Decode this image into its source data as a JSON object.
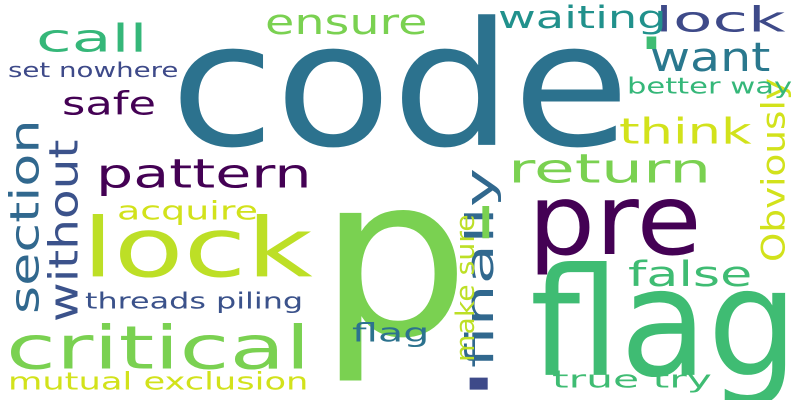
{
  "word_cloud": {
    "background_color": "#ffffff",
    "words": [
      {
        "text": "p",
        "color": "#7ad151",
        "orientation": "horizontal"
      },
      {
        "text": "code",
        "color": "#2c728e",
        "orientation": "horizontal"
      },
      {
        "text": "lock",
        "color": "#bddf26",
        "orientation": "horizontal"
      },
      {
        "text": "flag",
        "color": "#3fbc73",
        "orientation": "horizontal"
      },
      {
        "text": "pre",
        "color": "#440154",
        "orientation": "horizontal"
      },
      {
        "text": "critical",
        "color": "#7ad151",
        "orientation": "horizontal"
      },
      {
        "text": "section",
        "color": "#31688e",
        "orientation": "vertical"
      },
      {
        "text": "without",
        "color": "#3b528b",
        "orientation": "vertical"
      },
      {
        "text": "pattern",
        "color": "#440154",
        "orientation": "horizontal"
      },
      {
        "text": "return",
        "color": "#7ad151",
        "orientation": "horizontal"
      },
      {
        "text": "think",
        "color": "#d2e21b",
        "orientation": "horizontal"
      },
      {
        "text": "finally",
        "color": "#31688e",
        "orientation": "vertical"
      },
      {
        "text": "false",
        "color": "#3fbc73",
        "orientation": "horizontal"
      },
      {
        "text": "safe",
        "color": "#440154",
        "orientation": "horizontal"
      },
      {
        "text": "call",
        "color": "#35b779",
        "orientation": "horizontal"
      },
      {
        "text": "ensure",
        "color": "#7ad151",
        "orientation": "horizontal"
      },
      {
        "text": "want",
        "color": "#2a788e",
        "orientation": "horizontal"
      },
      {
        "text": "lock",
        "color": "#3e4a89",
        "orientation": "horizontal"
      },
      {
        "text": "waiting",
        "color": "#21918c",
        "orientation": "horizontal"
      },
      {
        "text": "acquire",
        "color": "#d2e21b",
        "orientation": "horizontal"
      },
      {
        "text": "Obviously",
        "color": "#d2e21b",
        "orientation": "vertical"
      },
      {
        "text": "flag",
        "color": "#2c728e",
        "orientation": "horizontal"
      },
      {
        "text": "mutual exclusion",
        "color": "#d2e21b",
        "orientation": "horizontal"
      },
      {
        "text": "true try",
        "color": "#3fbc73",
        "orientation": "horizontal"
      },
      {
        "text": "make sure",
        "color": "#bddf26",
        "orientation": "vertical"
      },
      {
        "text": "threads piling",
        "color": "#3b528b",
        "orientation": "horizontal"
      },
      {
        "text": "set nowhere",
        "color": "#3e4a89",
        "orientation": "horizontal"
      },
      {
        "text": "better way",
        "color": "#35b779",
        "orientation": "horizontal"
      },
      {
        "text": "|",
        "color": "#3fbc73",
        "orientation": "horizontal"
      },
      {
        "text": "|",
        "color": "#3e4a89",
        "orientation": "horizontal"
      },
      {
        "text": "|",
        "color": "#7ad151",
        "orientation": "horizontal"
      }
    ]
  }
}
